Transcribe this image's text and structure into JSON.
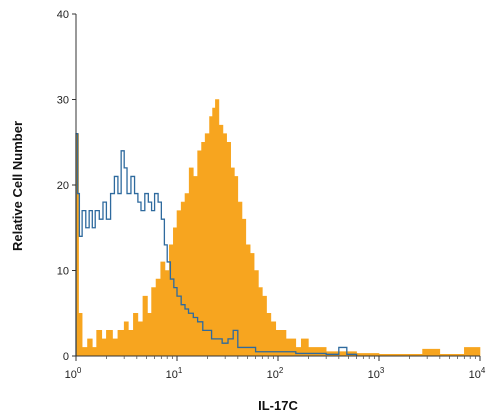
{
  "chart_data": {
    "type": "area",
    "title": "",
    "xlabel": "IL-17C",
    "ylabel": "Relative Cell Number",
    "x_scale": "log",
    "xlim": [
      1,
      10000
    ],
    "ylim": [
      0,
      40
    ],
    "grid": false,
    "x_ticks": [
      {
        "value": 1,
        "base": "10",
        "exp": "0"
      },
      {
        "value": 10,
        "base": "10",
        "exp": "1"
      },
      {
        "value": 100,
        "base": "10",
        "exp": "2"
      },
      {
        "value": 1000,
        "base": "10",
        "exp": "3"
      },
      {
        "value": 10000,
        "base": "10",
        "exp": "4"
      }
    ],
    "y_ticks": [
      {
        "value": 0,
        "label": "0"
      },
      {
        "value": 10,
        "label": "10"
      },
      {
        "value": 20,
        "label": "20"
      },
      {
        "value": 30,
        "label": "30"
      },
      {
        "value": 40,
        "label": "40"
      }
    ],
    "series": [
      {
        "style": "filled",
        "color": "#F7A51F",
        "points": [
          [
            1.0,
            26
          ],
          [
            1.06,
            5
          ],
          [
            1.15,
            1
          ],
          [
            1.3,
            2
          ],
          [
            1.45,
            1
          ],
          [
            1.6,
            3
          ],
          [
            1.8,
            2
          ],
          [
            2.0,
            3
          ],
          [
            2.3,
            2
          ],
          [
            2.6,
            3
          ],
          [
            3.0,
            4
          ],
          [
            3.3,
            3
          ],
          [
            3.7,
            5
          ],
          [
            4.1,
            4
          ],
          [
            4.6,
            7
          ],
          [
            5.1,
            5
          ],
          [
            5.6,
            8
          ],
          [
            6.2,
            9
          ],
          [
            6.9,
            11
          ],
          [
            7.6,
            10
          ],
          [
            8.4,
            13
          ],
          [
            9.2,
            15
          ],
          [
            10.0,
            17
          ],
          [
            11.0,
            18
          ],
          [
            12.0,
            19
          ],
          [
            13.2,
            22
          ],
          [
            14.5,
            21
          ],
          [
            16.0,
            24
          ],
          [
            17.5,
            25
          ],
          [
            19.0,
            26
          ],
          [
            21.0,
            28
          ],
          [
            22.5,
            29
          ],
          [
            24.0,
            30
          ],
          [
            26.0,
            27
          ],
          [
            28.5,
            26
          ],
          [
            31.0,
            25
          ],
          [
            34.0,
            22
          ],
          [
            37.0,
            21
          ],
          [
            40.0,
            18
          ],
          [
            44.0,
            16
          ],
          [
            48.0,
            13
          ],
          [
            53.0,
            12
          ],
          [
            58.0,
            10
          ],
          [
            64.0,
            8
          ],
          [
            70.0,
            7
          ],
          [
            77.0,
            5
          ],
          [
            85.0,
            4
          ],
          [
            95.0,
            3
          ],
          [
            105.0,
            3
          ],
          [
            120.0,
            2
          ],
          [
            135.0,
            2
          ],
          [
            150.0,
            1
          ],
          [
            170.0,
            2
          ],
          [
            200.0,
            1
          ],
          [
            240.0,
            1
          ],
          [
            300.0,
            0.5
          ],
          [
            400.0,
            0.5
          ],
          [
            600.0,
            0.3
          ],
          [
            1000.0,
            0.2
          ],
          [
            2000.0,
            0.2
          ],
          [
            2700.0,
            0.8
          ],
          [
            4000.0,
            0.2
          ],
          [
            6000.0,
            0.2
          ],
          [
            7000.0,
            1
          ],
          [
            10000.0,
            0
          ]
        ]
      },
      {
        "style": "outline",
        "color": "#2E6A9E",
        "points": [
          [
            1.0,
            26
          ],
          [
            1.04,
            19
          ],
          [
            1.08,
            14
          ],
          [
            1.15,
            17
          ],
          [
            1.25,
            15
          ],
          [
            1.35,
            17
          ],
          [
            1.45,
            15
          ],
          [
            1.55,
            17
          ],
          [
            1.7,
            16
          ],
          [
            1.85,
            18
          ],
          [
            2.0,
            16
          ],
          [
            2.2,
            19
          ],
          [
            2.4,
            21
          ],
          [
            2.6,
            19
          ],
          [
            2.8,
            24
          ],
          [
            3.0,
            22
          ],
          [
            3.2,
            19
          ],
          [
            3.5,
            21
          ],
          [
            3.8,
            19
          ],
          [
            4.1,
            18
          ],
          [
            4.4,
            17
          ],
          [
            4.8,
            19
          ],
          [
            5.2,
            18
          ],
          [
            5.6,
            17
          ],
          [
            6.0,
            19
          ],
          [
            6.5,
            18
          ],
          [
            7.0,
            16
          ],
          [
            7.5,
            13
          ],
          [
            8.0,
            11
          ],
          [
            8.6,
            9
          ],
          [
            9.3,
            8
          ],
          [
            10.0,
            7
          ],
          [
            11.0,
            6
          ],
          [
            12.0,
            5.5
          ],
          [
            13.0,
            5
          ],
          [
            14.5,
            4.5
          ],
          [
            16.0,
            4
          ],
          [
            18.0,
            3
          ],
          [
            20.0,
            3
          ],
          [
            22.0,
            2
          ],
          [
            25.0,
            2
          ],
          [
            28.0,
            1.5
          ],
          [
            32.0,
            2
          ],
          [
            36.0,
            3
          ],
          [
            40.0,
            1
          ],
          [
            48.0,
            1
          ],
          [
            60.0,
            0.5
          ],
          [
            80.0,
            0.5
          ],
          [
            100.0,
            0.5
          ],
          [
            150.0,
            0.3
          ],
          [
            200.0,
            0.3
          ],
          [
            300.0,
            0.2
          ],
          [
            400.0,
            1
          ],
          [
            480.0,
            0.2
          ],
          [
            600.0,
            0
          ]
        ]
      }
    ]
  }
}
